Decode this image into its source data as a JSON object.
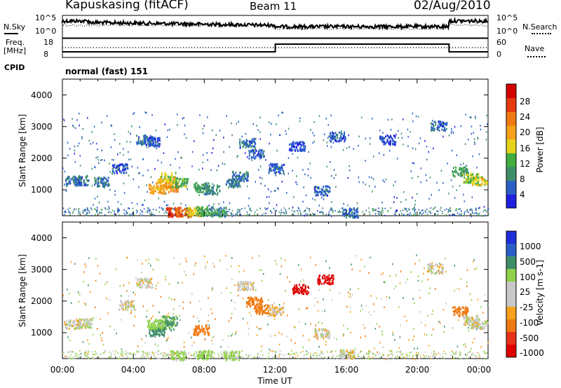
{
  "header": {
    "station": "Kapuskasing (fitACF)",
    "beam": "Beam 11",
    "date": "02/Aug/2010"
  },
  "noise_panel": {
    "left_label": "N.Sky",
    "right_label": "N.Search",
    "ticks_left": [
      "10^5",
      "10^0"
    ],
    "ticks_right": [
      "10^5",
      "10^0"
    ]
  },
  "freq_panel": {
    "left_label_1": "Freq.",
    "left_label_2": "[MHz]",
    "cpid_label": "CPID",
    "ticks_left": [
      "18",
      "8"
    ],
    "ticks_right": [
      "60",
      "0"
    ],
    "right_label": "Nave",
    "mode_text": "normal (fast) 151"
  },
  "colors": {
    "power_scale": [
      "#1f1fe0",
      "#2a5fc8",
      "#3f8e6a",
      "#3fae3f",
      "#e6d21a",
      "#f5a21a",
      "#f07a12",
      "#e63a10",
      "#d40000"
    ],
    "velocity_scale": [
      "#1e2ed8",
      "#2a5fc8",
      "#3f8e6a",
      "#8fd24a",
      "#c8c8c8",
      "#c8c8c8",
      "#f5a21a",
      "#f07a12",
      "#e6321a",
      "#e00000"
    ]
  },
  "chart_data": [
    {
      "type": "heatmap",
      "name": "power",
      "ylabel": "Slant Range [km]",
      "colorbar_label": "Power [dB]",
      "colorbar_ticks": [
        "28",
        "24",
        "20",
        "16",
        "12",
        "8",
        "4"
      ],
      "y_ticks": [
        "4000",
        "3000",
        "2000",
        "1000"
      ],
      "ylim": [
        180,
        4500
      ],
      "xlim": [
        0,
        24
      ],
      "regions": [
        {
          "t": 0.6,
          "r": 1300,
          "v": 8
        },
        {
          "t": 1.0,
          "r": 1320,
          "v": 6
        },
        {
          "t": 2.2,
          "r": 1280,
          "v": 7
        },
        {
          "t": 3.2,
          "r": 1700,
          "v": 5
        },
        {
          "t": 4.6,
          "r": 2600,
          "v": 6
        },
        {
          "t": 5.0,
          "r": 2550,
          "v": 5
        },
        {
          "t": 5.3,
          "r": 1050,
          "v": 20
        },
        {
          "t": 5.7,
          "r": 1200,
          "v": 18
        },
        {
          "t": 5.9,
          "r": 1420,
          "v": 16
        },
        {
          "t": 6.1,
          "r": 1100,
          "v": 22
        },
        {
          "t": 6.6,
          "r": 1250,
          "v": 12
        },
        {
          "t": 6.3,
          "r": 320,
          "v": 28
        },
        {
          "t": 6.8,
          "r": 300,
          "v": 24
        },
        {
          "t": 7.4,
          "r": 330,
          "v": 16
        },
        {
          "t": 8.0,
          "r": 350,
          "v": 12
        },
        {
          "t": 8.8,
          "r": 330,
          "v": 9
        },
        {
          "t": 7.8,
          "r": 1100,
          "v": 10
        },
        {
          "t": 8.4,
          "r": 1020,
          "v": 8
        },
        {
          "t": 9.6,
          "r": 1250,
          "v": 7
        },
        {
          "t": 10.4,
          "r": 2500,
          "v": 6
        },
        {
          "t": 10.9,
          "r": 2150,
          "v": 5
        },
        {
          "t": 10.0,
          "r": 1450,
          "v": 7
        },
        {
          "t": 12.0,
          "r": 1700,
          "v": 5
        },
        {
          "t": 13.2,
          "r": 2400,
          "v": 4
        },
        {
          "t": 14.6,
          "r": 1000,
          "v": 6
        },
        {
          "t": 15.5,
          "r": 2700,
          "v": 5
        },
        {
          "t": 16.2,
          "r": 300,
          "v": 6
        },
        {
          "t": 18.3,
          "r": 2600,
          "v": 4
        },
        {
          "t": 21.2,
          "r": 3050,
          "v": 6
        },
        {
          "t": 22.4,
          "r": 1600,
          "v": 10
        },
        {
          "t": 23.0,
          "r": 1400,
          "v": 14
        },
        {
          "t": 23.5,
          "r": 1300,
          "v": 16
        }
      ]
    },
    {
      "type": "heatmap",
      "name": "velocity",
      "ylabel": "Slant Range [km]",
      "colorbar_label": "Velocity [m s-1]",
      "colorbar_ticks": [
        "1000",
        "500",
        "100",
        "25",
        "-25",
        "-100",
        "-500",
        "-1000"
      ],
      "y_ticks": [
        "4000",
        "3000",
        "2000",
        "1000"
      ],
      "ylim": [
        180,
        4500
      ],
      "xlim": [
        0,
        24
      ],
      "x_ticks": [
        "00:00",
        "04:00",
        "08:00",
        "12:00",
        "16:00",
        "20:00",
        "00:00"
      ],
      "xlabel": "Time UT",
      "regions": [
        {
          "t": 0.6,
          "r": 1300,
          "v": 0
        },
        {
          "t": 1.2,
          "r": 1320,
          "v": 10
        },
        {
          "t": 3.6,
          "r": 1900,
          "v": 0
        },
        {
          "t": 4.6,
          "r": 2600,
          "v": 0
        },
        {
          "t": 5.3,
          "r": 1050,
          "v": 150
        },
        {
          "t": 5.8,
          "r": 1250,
          "v": 120
        },
        {
          "t": 6.0,
          "r": 1400,
          "v": 90
        },
        {
          "t": 5.2,
          "r": 1300,
          "v": 60
        },
        {
          "t": 6.5,
          "r": 300,
          "v": 50
        },
        {
          "t": 8.0,
          "r": 320,
          "v": 60
        },
        {
          "t": 9.5,
          "r": 300,
          "v": 40
        },
        {
          "t": 7.8,
          "r": 1100,
          "v": -200
        },
        {
          "t": 10.3,
          "r": 2500,
          "v": 0
        },
        {
          "t": 10.8,
          "r": 2000,
          "v": -150
        },
        {
          "t": 11.2,
          "r": 1750,
          "v": -300
        },
        {
          "t": 12.0,
          "r": 1700,
          "v": -20
        },
        {
          "t": 13.4,
          "r": 2400,
          "v": -600
        },
        {
          "t": 14.8,
          "r": 2700,
          "v": -700
        },
        {
          "t": 14.6,
          "r": 1000,
          "v": 0
        },
        {
          "t": 16.0,
          "r": 350,
          "v": 0
        },
        {
          "t": 21.0,
          "r": 3050,
          "v": 0
        },
        {
          "t": 22.4,
          "r": 1700,
          "v": -300
        },
        {
          "t": 23.0,
          "r": 1400,
          "v": 0
        },
        {
          "t": 23.5,
          "r": 1300,
          "v": 0
        }
      ]
    }
  ]
}
